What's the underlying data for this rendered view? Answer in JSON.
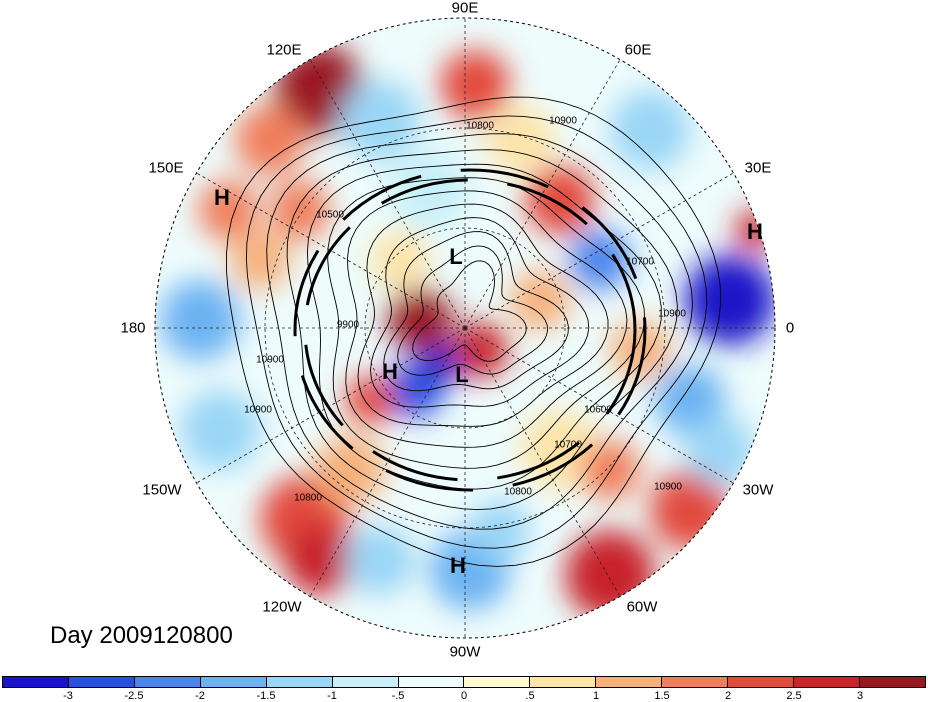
{
  "title_text": "Day 2009120800",
  "longitude_labels": [
    {
      "text": "90E",
      "lon": "90E"
    },
    {
      "text": "60E",
      "lon": "60E"
    },
    {
      "text": "30E",
      "lon": "30E"
    },
    {
      "text": "0",
      "lon": "0"
    },
    {
      "text": "30W",
      "lon": "30W"
    },
    {
      "text": "60W",
      "lon": "60W"
    },
    {
      "text": "90W",
      "lon": "90W"
    },
    {
      "text": "120W",
      "lon": "120W"
    },
    {
      "text": "150W",
      "lon": "150W"
    },
    {
      "text": "180",
      "lon": "180"
    },
    {
      "text": "150E",
      "lon": "150E"
    },
    {
      "text": "120E",
      "lon": "120E"
    }
  ],
  "pressure_centers": [
    {
      "text": "H",
      "kind": "high"
    },
    {
      "text": "H",
      "kind": "high"
    },
    {
      "text": "L",
      "kind": "low"
    },
    {
      "text": "H",
      "kind": "high"
    },
    {
      "text": "L",
      "kind": "low"
    },
    {
      "text": "H",
      "kind": "high"
    }
  ],
  "contour_labels": [
    "10800",
    "10900",
    "10900",
    "10700",
    "10900",
    "10600",
    "10700",
    "10800",
    "10900",
    "10900",
    "10800",
    "9900",
    "10500"
  ],
  "colorbar": {
    "tick_labels": [
      "-3",
      "-2.5",
      "-2",
      "-1.5",
      "-1",
      "-.5",
      "0",
      ".5",
      "1",
      "1.5",
      "2",
      "2.5",
      "3"
    ],
    "colors": [
      "#1a14c8",
      "#2a50e0",
      "#4a84ec",
      "#6cb2f2",
      "#9ad6f6",
      "#c8f0f8",
      "#eefcfc",
      "#fffad0",
      "#fde4a8",
      "#f6b07a",
      "#f07e5c",
      "#e24a3c",
      "#c8242a",
      "#9a1620"
    ]
  },
  "colors": {
    "background": "#ffffff",
    "frame_dash": "#000000",
    "contour": "#000000"
  }
}
